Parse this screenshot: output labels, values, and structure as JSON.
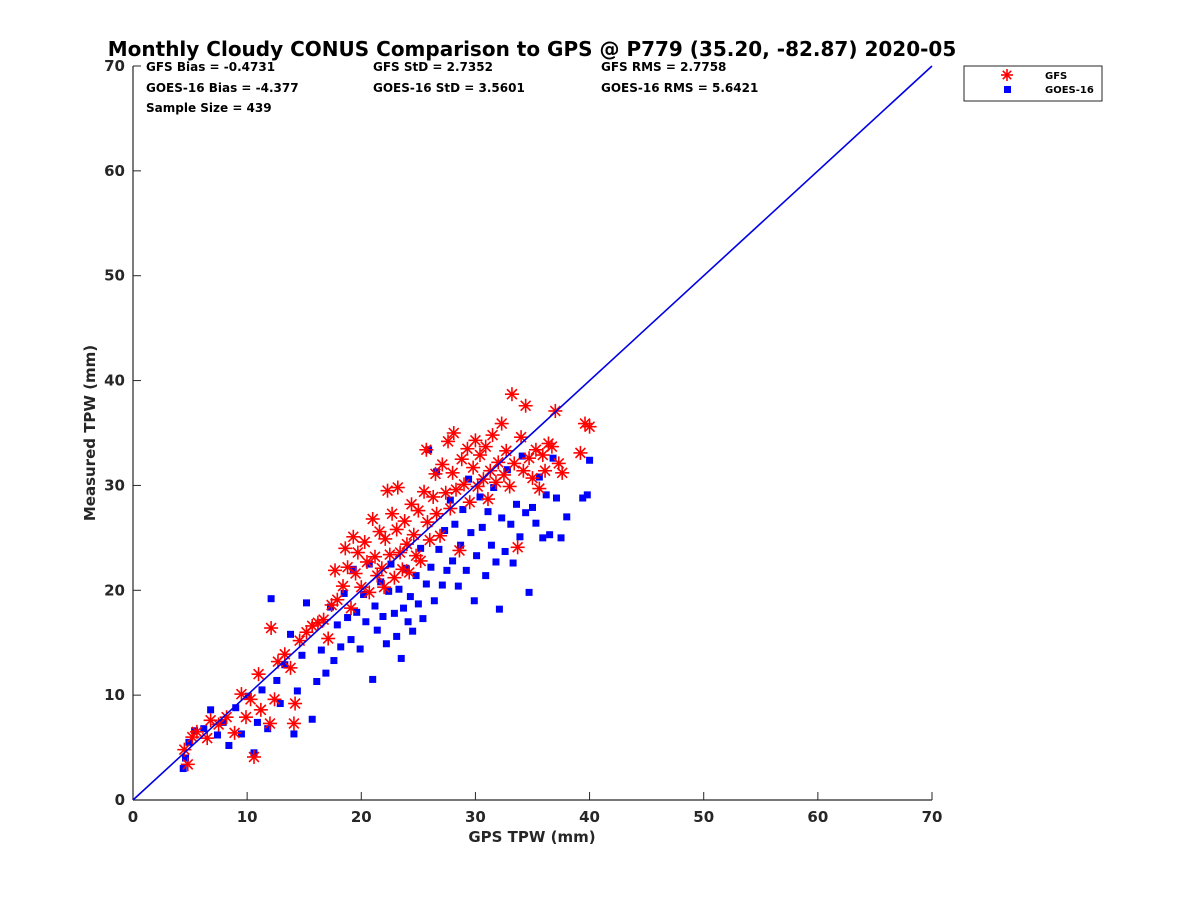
{
  "chart_data": {
    "type": "scatter",
    "title": "Monthly Cloudy CONUS Comparison to GPS @ P779 (35.20, -82.87) 2020-05",
    "xlabel": "GPS TPW (mm)",
    "ylabel": "Measured TPW (mm)",
    "xlim": [
      0,
      70
    ],
    "ylim": [
      0,
      70
    ],
    "xticks": [
      "0",
      "10",
      "20",
      "30",
      "40",
      "50",
      "60",
      "70"
    ],
    "yticks": [
      "0",
      "10",
      "20",
      "30",
      "40",
      "50",
      "60",
      "70"
    ],
    "grid": false,
    "legend_position": "top-right outside",
    "stats": [
      "GFS Bias = -0.4731",
      "GFS StD = 2.7352",
      "GFS RMS = 2.7758",
      "GOES-16 Bias = -4.377",
      "GOES-16 StD = 3.5601",
      "GOES-16 RMS = 5.6421",
      "Sample Size = 439"
    ],
    "reference_line": {
      "x": [
        0,
        70
      ],
      "y": [
        0,
        70
      ],
      "color": "#0000e6"
    },
    "series": [
      {
        "name": "GFS",
        "marker": "asterisk",
        "color": "#ff0000",
        "points": [
          [
            4.5,
            4.8
          ],
          [
            4.8,
            3.4
          ],
          [
            5.2,
            6.0
          ],
          [
            5.6,
            6.5
          ],
          [
            6.5,
            5.9
          ],
          [
            6.8,
            7.6
          ],
          [
            7.5,
            7.2
          ],
          [
            8.2,
            7.9
          ],
          [
            8.9,
            6.4
          ],
          [
            9.5,
            10.1
          ],
          [
            9.9,
            7.9
          ],
          [
            10.3,
            9.6
          ],
          [
            10.6,
            4.1
          ],
          [
            11.0,
            12.0
          ],
          [
            11.2,
            8.6
          ],
          [
            12.0,
            7.3
          ],
          [
            12.1,
            16.4
          ],
          [
            12.4,
            9.6
          ],
          [
            12.7,
            13.2
          ],
          [
            13.3,
            13.9
          ],
          [
            13.8,
            12.6
          ],
          [
            14.1,
            7.3
          ],
          [
            14.2,
            9.2
          ],
          [
            14.6,
            15.2
          ],
          [
            15.2,
            16.0
          ],
          [
            15.7,
            16.6
          ],
          [
            16.2,
            16.9
          ],
          [
            16.7,
            17.2
          ],
          [
            17.1,
            15.4
          ],
          [
            17.4,
            18.6
          ],
          [
            17.7,
            21.9
          ],
          [
            17.9,
            19.1
          ],
          [
            18.4,
            20.4
          ],
          [
            18.6,
            24.0
          ],
          [
            18.8,
            22.2
          ],
          [
            19.1,
            18.3
          ],
          [
            19.3,
            25.1
          ],
          [
            19.5,
            21.6
          ],
          [
            19.7,
            23.6
          ],
          [
            20.0,
            20.3
          ],
          [
            20.3,
            24.6
          ],
          [
            20.5,
            22.7
          ],
          [
            20.7,
            19.8
          ],
          [
            21.0,
            26.8
          ],
          [
            21.2,
            23.2
          ],
          [
            21.4,
            21.4
          ],
          [
            21.6,
            25.6
          ],
          [
            21.8,
            22.1
          ],
          [
            22.0,
            20.3
          ],
          [
            22.1,
            24.9
          ],
          [
            22.3,
            29.5
          ],
          [
            22.5,
            23.4
          ],
          [
            22.7,
            27.3
          ],
          [
            22.9,
            21.2
          ],
          [
            23.1,
            25.8
          ],
          [
            23.2,
            29.8
          ],
          [
            23.4,
            23.6
          ],
          [
            23.6,
            22.0
          ],
          [
            23.8,
            26.6
          ],
          [
            24.0,
            24.4
          ],
          [
            24.2,
            21.7
          ],
          [
            24.4,
            28.2
          ],
          [
            24.6,
            25.3
          ],
          [
            24.8,
            23.3
          ],
          [
            25.0,
            27.6
          ],
          [
            25.2,
            22.8
          ],
          [
            25.5,
            29.4
          ],
          [
            25.7,
            33.4
          ],
          [
            25.8,
            26.5
          ],
          [
            26.0,
            24.8
          ],
          [
            26.3,
            28.9
          ],
          [
            26.5,
            31.1
          ],
          [
            26.6,
            27.3
          ],
          [
            26.9,
            25.2
          ],
          [
            27.1,
            32.0
          ],
          [
            27.4,
            29.3
          ],
          [
            27.6,
            34.2
          ],
          [
            27.8,
            27.8
          ],
          [
            28.0,
            31.2
          ],
          [
            28.1,
            35.0
          ],
          [
            28.3,
            29.6
          ],
          [
            28.6,
            23.8
          ],
          [
            28.8,
            32.5
          ],
          [
            29.0,
            30.1
          ],
          [
            29.3,
            33.5
          ],
          [
            29.5,
            28.4
          ],
          [
            29.8,
            31.7
          ],
          [
            30.0,
            34.3
          ],
          [
            30.2,
            29.9
          ],
          [
            30.4,
            32.9
          ],
          [
            30.7,
            30.6
          ],
          [
            30.9,
            33.7
          ],
          [
            31.1,
            28.7
          ],
          [
            31.3,
            31.4
          ],
          [
            31.5,
            34.8
          ],
          [
            31.8,
            30.3
          ],
          [
            32.0,
            32.2
          ],
          [
            32.3,
            35.9
          ],
          [
            32.5,
            31.0
          ],
          [
            32.7,
            33.3
          ],
          [
            33.0,
            29.9
          ],
          [
            33.2,
            38.7
          ],
          [
            33.4,
            32.1
          ],
          [
            33.7,
            24.1
          ],
          [
            34.0,
            34.6
          ],
          [
            34.2,
            31.4
          ],
          [
            34.4,
            37.6
          ],
          [
            34.7,
            32.6
          ],
          [
            35.0,
            30.7
          ],
          [
            35.3,
            33.4
          ],
          [
            35.6,
            29.7
          ],
          [
            35.9,
            32.9
          ],
          [
            36.1,
            31.4
          ],
          [
            36.4,
            34.0
          ],
          [
            36.7,
            33.7
          ],
          [
            37.0,
            37.1
          ],
          [
            37.3,
            32.1
          ],
          [
            37.6,
            31.2
          ],
          [
            39.2,
            33.1
          ],
          [
            39.6,
            35.9
          ],
          [
            40.0,
            35.6
          ]
        ]
      },
      {
        "name": "GOES-16",
        "marker": "square",
        "color": "#0000ff",
        "points": [
          [
            4.4,
            3.0
          ],
          [
            4.6,
            4.0
          ],
          [
            4.9,
            5.5
          ],
          [
            5.4,
            6.6
          ],
          [
            6.2,
            6.8
          ],
          [
            6.8,
            8.6
          ],
          [
            7.4,
            6.2
          ],
          [
            7.9,
            7.4
          ],
          [
            8.4,
            5.2
          ],
          [
            9.0,
            8.8
          ],
          [
            9.5,
            6.3
          ],
          [
            10.1,
            9.9
          ],
          [
            10.6,
            4.5
          ],
          [
            10.9,
            7.4
          ],
          [
            11.3,
            10.5
          ],
          [
            11.8,
            6.8
          ],
          [
            12.1,
            19.2
          ],
          [
            12.6,
            11.4
          ],
          [
            12.9,
            9.2
          ],
          [
            13.3,
            12.9
          ],
          [
            13.8,
            15.8
          ],
          [
            14.1,
            6.3
          ],
          [
            14.4,
            10.4
          ],
          [
            14.8,
            13.8
          ],
          [
            15.2,
            18.8
          ],
          [
            15.7,
            7.7
          ],
          [
            16.1,
            11.3
          ],
          [
            16.5,
            14.3
          ],
          [
            16.9,
            12.1
          ],
          [
            17.3,
            18.4
          ],
          [
            17.6,
            13.3
          ],
          [
            17.9,
            16.7
          ],
          [
            18.2,
            14.6
          ],
          [
            18.5,
            19.7
          ],
          [
            18.8,
            17.4
          ],
          [
            19.1,
            15.3
          ],
          [
            19.3,
            22.0
          ],
          [
            19.6,
            17.9
          ],
          [
            19.9,
            14.4
          ],
          [
            20.2,
            19.6
          ],
          [
            20.4,
            17.0
          ],
          [
            20.7,
            22.5
          ],
          [
            21.0,
            11.5
          ],
          [
            21.2,
            18.5
          ],
          [
            21.4,
            16.2
          ],
          [
            21.7,
            20.8
          ],
          [
            21.9,
            17.5
          ],
          [
            22.2,
            14.9
          ],
          [
            22.4,
            19.9
          ],
          [
            22.6,
            22.5
          ],
          [
            22.9,
            17.8
          ],
          [
            23.1,
            15.6
          ],
          [
            23.3,
            20.1
          ],
          [
            23.5,
            13.5
          ],
          [
            23.7,
            18.3
          ],
          [
            23.9,
            22.1
          ],
          [
            24.1,
            17.0
          ],
          [
            24.3,
            19.4
          ],
          [
            24.5,
            16.1
          ],
          [
            24.8,
            21.4
          ],
          [
            25.0,
            18.7
          ],
          [
            25.2,
            24.0
          ],
          [
            25.4,
            17.3
          ],
          [
            25.7,
            20.6
          ],
          [
            25.9,
            33.4
          ],
          [
            26.1,
            22.2
          ],
          [
            26.4,
            19.0
          ],
          [
            26.6,
            31.3
          ],
          [
            26.8,
            23.9
          ],
          [
            27.1,
            20.5
          ],
          [
            27.3,
            25.7
          ],
          [
            27.5,
            21.9
          ],
          [
            27.8,
            28.6
          ],
          [
            28.0,
            22.8
          ],
          [
            28.2,
            26.3
          ],
          [
            28.5,
            20.4
          ],
          [
            28.7,
            24.3
          ],
          [
            28.9,
            27.7
          ],
          [
            29.2,
            21.9
          ],
          [
            29.4,
            30.6
          ],
          [
            29.6,
            25.5
          ],
          [
            29.9,
            19.0
          ],
          [
            30.1,
            23.3
          ],
          [
            30.4,
            28.9
          ],
          [
            30.6,
            26.0
          ],
          [
            30.9,
            21.4
          ],
          [
            31.1,
            27.5
          ],
          [
            31.4,
            24.3
          ],
          [
            31.6,
            29.8
          ],
          [
            31.8,
            22.7
          ],
          [
            32.1,
            18.2
          ],
          [
            32.3,
            26.9
          ],
          [
            32.6,
            23.7
          ],
          [
            32.8,
            31.5
          ],
          [
            33.1,
            26.3
          ],
          [
            33.3,
            22.6
          ],
          [
            33.6,
            28.2
          ],
          [
            33.9,
            25.1
          ],
          [
            34.1,
            32.8
          ],
          [
            34.4,
            27.4
          ],
          [
            34.7,
            19.8
          ],
          [
            35.0,
            27.9
          ],
          [
            35.3,
            26.4
          ],
          [
            35.6,
            30.8
          ],
          [
            35.9,
            25.0
          ],
          [
            36.2,
            29.1
          ],
          [
            36.5,
            25.3
          ],
          [
            36.8,
            32.6
          ],
          [
            37.1,
            28.8
          ],
          [
            37.5,
            25.0
          ],
          [
            38.0,
            27.0
          ],
          [
            39.4,
            28.8
          ],
          [
            39.8,
            29.1
          ],
          [
            40.0,
            32.4
          ]
        ]
      }
    ]
  }
}
